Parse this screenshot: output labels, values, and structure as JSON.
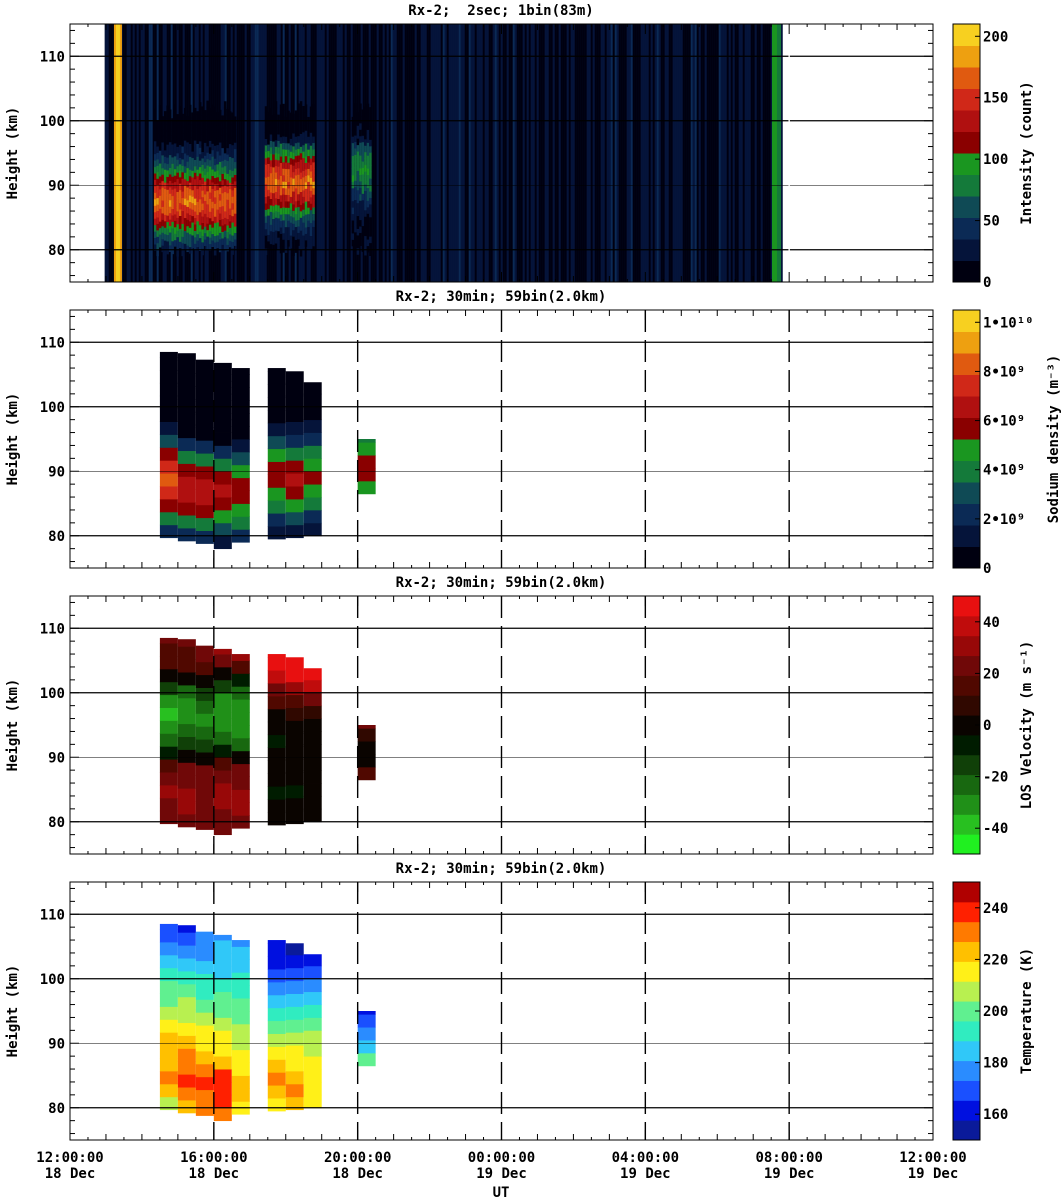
{
  "chart_data": [
    {
      "type": "heatmap",
      "title": "Rx-2;  2sec; 1bin(83m)",
      "ylabel": "Height (km)",
      "ylim": [
        75,
        115
      ],
      "y_ticks": [
        "80",
        "90",
        "100",
        "110"
      ],
      "colorbar": {
        "label": "Intensity (count)",
        "range": [
          0,
          210
        ],
        "ticks": [
          "0",
          "50",
          "100",
          "150",
          "200"
        ],
        "colors": [
          "#000010",
          "#05143a",
          "#0b2a55",
          "#0f4a55",
          "#147a3a",
          "#1a9620",
          "#8a0000",
          "#b01010",
          "#d02818",
          "#e05a10",
          "#eea010",
          "#f7d020"
        ]
      },
      "data_window": [
        "12:58",
        "07:48"
      ],
      "bright_band": "13:20",
      "layers": [
        {
          "start": "14:20",
          "end": "16:35",
          "peak_km": 87
        },
        {
          "start": "17:25",
          "end": "18:45",
          "peak_km": 90
        },
        {
          "start": "19:50",
          "end": "20:20",
          "peak_km": 92
        }
      ],
      "grid": "horizontal"
    },
    {
      "type": "heatmap",
      "title": "Rx-2; 30min; 59bin(2.0km)",
      "ylabel": "Height (km)",
      "ylim": [
        75,
        115
      ],
      "y_ticks": [
        "80",
        "90",
        "100",
        "110"
      ],
      "colorbar": {
        "label": "Sodium density",
        "unit": "(m⁻³)",
        "range": [
          0,
          10500000000.0
        ],
        "ticks": [
          "0",
          "2•10⁹",
          "4•10⁹",
          "6•10⁹",
          "8•10⁹",
          "1•10¹⁰"
        ],
        "colors": [
          "#000010",
          "#05143a",
          "#0b2a55",
          "#0f4a55",
          "#147a3a",
          "#1a9620",
          "#8a0000",
          "#b01010",
          "#d02818",
          "#e05a10",
          "#eea010",
          "#f7d020"
        ]
      },
      "columns": [
        {
          "t": "14:45",
          "bottom": 79.7,
          "top": 108.5,
          "peak": 88.5,
          "max": 8500000000.0
        },
        {
          "t": "15:15",
          "bottom": 79.2,
          "top": 108.3,
          "peak": 87.5,
          "max": 7000000000.0
        },
        {
          "t": "15:45",
          "bottom": 78.8,
          "top": 107.3,
          "peak": 87.0,
          "max": 6800000000.0
        },
        {
          "t": "16:15",
          "bottom": 78.0,
          "top": 106.8,
          "peak": 86.5,
          "max": 6200000000.0
        },
        {
          "t": "16:45",
          "bottom": 79.0,
          "top": 106.0,
          "peak": 86.5,
          "max": 6000000000.0
        },
        {
          "t": "17:45",
          "bottom": 79.5,
          "top": 106.0,
          "peak": 89.0,
          "max": 6000000000.0
        },
        {
          "t": "18:15",
          "bottom": 79.7,
          "top": 105.5,
          "peak": 88.5,
          "max": 6300000000.0
        },
        {
          "t": "18:45",
          "bottom": 80.0,
          "top": 103.8,
          "peak": 89.0,
          "max": 5600000000.0
        },
        {
          "t": "20:15",
          "bottom": 86.5,
          "top": 95.0,
          "peak": 91.0,
          "max": 6000000000.0
        }
      ],
      "grid": "horizontal and vertical dashed"
    },
    {
      "type": "heatmap",
      "title": "Rx-2; 30min; 59bin(2.0km)",
      "ylabel": "Height (km)",
      "ylim": [
        75,
        115
      ],
      "y_ticks": [
        "80",
        "90",
        "100",
        "110"
      ],
      "colorbar": {
        "label": "LOS Velocity",
        "unit": "(m s⁻¹)",
        "range": [
          -50,
          50
        ],
        "ticks": [
          "-40",
          "-20",
          "0",
          "20",
          "40"
        ],
        "colors": [
          "#20f020",
          "#28c020",
          "#209018",
          "#186810",
          "#104008",
          "#001c00",
          "#0a0400",
          "#300800",
          "#500800",
          "#700808",
          "#980808",
          "#c00c0c",
          "#e81010"
        ]
      },
      "columns": [
        {
          "t": "14:45",
          "bottom": 79.7,
          "top": 108.5,
          "profile": [
            [
              80,
              22
            ],
            [
              84,
              28
            ],
            [
              88,
              25
            ],
            [
              92,
              -20
            ],
            [
              96,
              -40
            ],
            [
              100,
              -25
            ],
            [
              104,
              10
            ],
            [
              108,
              20
            ]
          ]
        },
        {
          "t": "15:15",
          "bottom": 79.2,
          "top": 108.3,
          "profile": [
            [
              80,
              25
            ],
            [
              84,
              30
            ],
            [
              88,
              22
            ],
            [
              92,
              -15
            ],
            [
              96,
              -35
            ],
            [
              100,
              -22
            ],
            [
              104,
              12
            ],
            [
              108,
              22
            ]
          ]
        },
        {
          "t": "15:45",
          "bottom": 78.8,
          "top": 107.3,
          "profile": [
            [
              80,
              24
            ],
            [
              84,
              26
            ],
            [
              88,
              20
            ],
            [
              92,
              -18
            ],
            [
              96,
              -30
            ],
            [
              100,
              -15
            ],
            [
              104,
              15
            ],
            [
              107,
              25
            ]
          ]
        },
        {
          "t": "16:15",
          "bottom": 78.0,
          "top": 106.8,
          "profile": [
            [
              80,
              22
            ],
            [
              84,
              30
            ],
            [
              88,
              24
            ],
            [
              92,
              -22
            ],
            [
              96,
              -36
            ],
            [
              100,
              -28
            ],
            [
              104,
              14
            ],
            [
              106,
              28
            ]
          ]
        },
        {
          "t": "16:45",
          "bottom": 79.0,
          "top": 106.0,
          "profile": [
            [
              80,
              26
            ],
            [
              84,
              28
            ],
            [
              88,
              20
            ],
            [
              92,
              -20
            ],
            [
              96,
              -34
            ],
            [
              100,
              -26
            ],
            [
              104,
              18
            ],
            [
              106,
              30
            ]
          ]
        },
        {
          "t": "17:45",
          "bottom": 79.5,
          "top": 106.0,
          "profile": [
            [
              80,
              5
            ],
            [
              84,
              -8
            ],
            [
              88,
              2
            ],
            [
              92,
              -6
            ],
            [
              96,
              0
            ],
            [
              100,
              20
            ],
            [
              102,
              40
            ],
            [
              106,
              48
            ]
          ]
        },
        {
          "t": "18:15",
          "bottom": 79.7,
          "top": 105.5,
          "profile": [
            [
              80,
              5
            ],
            [
              84,
              -6
            ],
            [
              88,
              4
            ],
            [
              92,
              -4
            ],
            [
              96,
              2
            ],
            [
              100,
              25
            ],
            [
              102,
              42
            ],
            [
              105,
              48
            ]
          ]
        },
        {
          "t": "18:45",
          "bottom": 80.0,
          "top": 103.8,
          "profile": [
            [
              80,
              6
            ],
            [
              84,
              -5
            ],
            [
              88,
              3
            ],
            [
              92,
              -5
            ],
            [
              96,
              4
            ],
            [
              100,
              30
            ],
            [
              102,
              44
            ],
            [
              104,
              46
            ]
          ]
        },
        {
          "t": "20:15",
          "bottom": 86.5,
          "top": 95.0,
          "profile": [
            [
              87,
              20
            ],
            [
              90,
              -5
            ],
            [
              92,
              -3
            ],
            [
              95,
              25
            ]
          ]
        }
      ],
      "grid": "horizontal and vertical dashed"
    },
    {
      "type": "heatmap",
      "title": "Rx-2; 30min; 59bin(2.0km)",
      "ylabel": "Height (km)",
      "ylim": [
        75,
        115
      ],
      "y_ticks": [
        "80",
        "90",
        "100",
        "110"
      ],
      "colorbar": {
        "label": "Temperature (K)",
        "range": [
          150,
          250
        ],
        "ticks": [
          "160",
          "180",
          "200",
          "220",
          "240"
        ],
        "colors": [
          "#0a1a9a",
          "#0010e0",
          "#1a50ff",
          "#2a8cff",
          "#30c8f8",
          "#30ecc0",
          "#60f090",
          "#b8f050",
          "#fff018",
          "#ffc000",
          "#ff7a00",
          "#ff2000",
          "#b00000"
        ]
      },
      "columns": [
        {
          "t": "14:45",
          "bottom": 79.7,
          "top": 108.5,
          "profile": [
            [
              80,
              205
            ],
            [
              84,
              228
            ],
            [
              88,
              225
            ],
            [
              92,
              218
            ],
            [
              96,
              205
            ],
            [
              100,
              195
            ],
            [
              104,
              178
            ],
            [
              108,
              168
            ]
          ]
        },
        {
          "t": "15:15",
          "bottom": 79.2,
          "top": 108.3,
          "profile": [
            [
              80,
              220
            ],
            [
              84,
              238
            ],
            [
              88,
              228
            ],
            [
              92,
              215
            ],
            [
              96,
              205
            ],
            [
              100,
              192
            ],
            [
              104,
              175
            ],
            [
              108,
              165
            ]
          ]
        },
        {
          "t": "15:45",
          "bottom": 78.8,
          "top": 107.3,
          "profile": [
            [
              80,
              228
            ],
            [
              84,
              240
            ],
            [
              88,
              225
            ],
            [
              92,
              212
            ],
            [
              96,
              200
            ],
            [
              100,
              188
            ],
            [
              104,
              180
            ],
            [
              107,
              178
            ]
          ]
        },
        {
          "t": "16:15",
          "bottom": 78.0,
          "top": 106.8,
          "profile": [
            [
              79,
              230
            ],
            [
              84,
              242
            ],
            [
              88,
              220
            ],
            [
              92,
              215
            ],
            [
              96,
              200
            ],
            [
              100,
              190
            ],
            [
              104,
              182
            ],
            [
              106,
              180
            ]
          ]
        },
        {
          "t": "16:45",
          "bottom": 79.0,
          "top": 106.0,
          "profile": [
            [
              80,
              218
            ],
            [
              84,
              225
            ],
            [
              88,
              212
            ],
            [
              92,
              208
            ],
            [
              96,
              198
            ],
            [
              100,
              190
            ],
            [
              104,
              182
            ],
            [
              106,
              180
            ]
          ]
        },
        {
          "t": "17:45",
          "bottom": 79.5,
          "top": 106.0,
          "profile": [
            [
              80,
              215
            ],
            [
              84,
              230
            ],
            [
              88,
              215
            ],
            [
              92,
              205
            ],
            [
              96,
              190
            ],
            [
              100,
              172
            ],
            [
              104,
              160
            ],
            [
              106,
              158
            ]
          ]
        },
        {
          "t": "18:15",
          "bottom": 79.7,
          "top": 105.5,
          "profile": [
            [
              80,
              218
            ],
            [
              82,
              232
            ],
            [
              86,
              218
            ],
            [
              92,
              205
            ],
            [
              96,
              188
            ],
            [
              100,
              168
            ],
            [
              104,
              158
            ],
            [
              105,
              156
            ]
          ]
        },
        {
          "t": "18:45",
          "bottom": 80.0,
          "top": 103.8,
          "profile": [
            [
              80,
              218
            ],
            [
              86,
              215
            ],
            [
              92,
              205
            ],
            [
              96,
              192
            ],
            [
              100,
              172
            ],
            [
              103,
              165
            ]
          ]
        },
        {
          "t": "20:15",
          "bottom": 86.5,
          "top": 95.0,
          "profile": [
            [
              87,
              200
            ],
            [
              90,
              185
            ],
            [
              93,
              175
            ],
            [
              95,
              160
            ]
          ]
        }
      ],
      "grid": "horizontal and vertical dashed"
    }
  ],
  "x_axis": {
    "label": "UT",
    "ticks": [
      {
        "time": "12:00:00",
        "date": "18 Dec"
      },
      {
        "time": "16:00:00",
        "date": "18 Dec"
      },
      {
        "time": "20:00:00",
        "date": "18 Dec"
      },
      {
        "time": "00:00:00",
        "date": "19 Dec"
      },
      {
        "time": "04:00:00",
        "date": "19 Dec"
      },
      {
        "time": "08:00:00",
        "date": "19 Dec"
      },
      {
        "time": "12:00:00",
        "date": "19 Dec"
      }
    ],
    "range": [
      "12:00 18 Dec",
      "12:00 19 Dec"
    ]
  }
}
